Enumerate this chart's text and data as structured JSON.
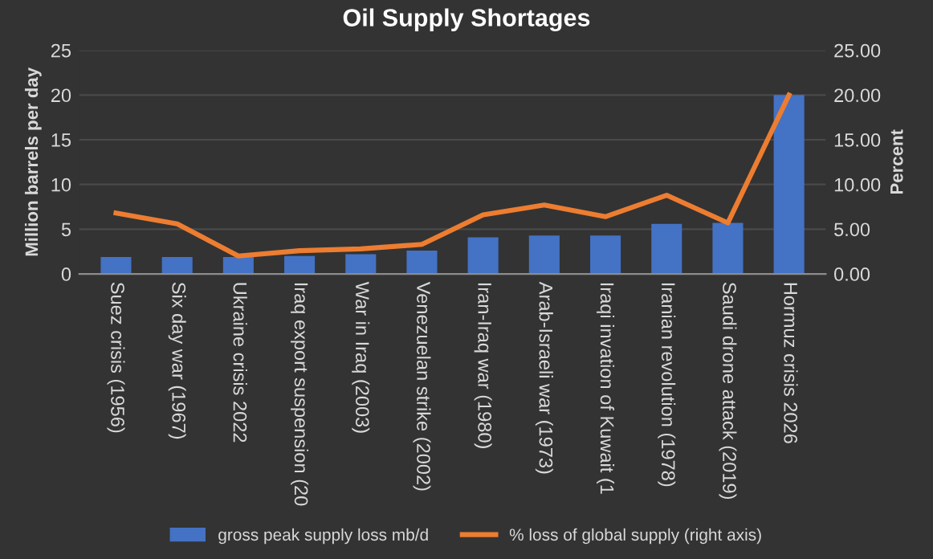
{
  "chart_data": {
    "type": "bar",
    "title": "Oil Supply Shortages",
    "ylabel": "Million barrels per day",
    "y2label": "Percent",
    "categories": [
      "Suez crisis (1956)",
      "Six day war (1967)",
      "Ukraine crisis 2022",
      "Iraq export suspension (20",
      "War in Iraq (2003)",
      "Venezuelan strike (2002)",
      "Iran-Iraq war (1980)",
      "Arab-Israeli war (1973)",
      "Iraqi invation of Kuwait (1",
      "Iranian revolution (1978)",
      "Saudi drone attack (2019)",
      "Hormuz crisis 2026"
    ],
    "series": [
      {
        "name": "gross peak supply loss mb/d",
        "color": "#4472c4",
        "values": [
          1.9,
          1.9,
          1.9,
          2.0,
          2.2,
          2.6,
          4.1,
          4.3,
          4.3,
          5.6,
          5.7,
          20
        ]
      },
      {
        "name": "% loss of global supply (right axis)",
        "color": "#ed7d31",
        "type": "line",
        "axis": "y2",
        "values": [
          6.8,
          5.6,
          2.0,
          2.6,
          2.8,
          3.3,
          6.6,
          7.7,
          6.4,
          8.8,
          5.7,
          20
        ]
      }
    ],
    "ylim": [
      0,
      25
    ],
    "yticks": [
      0,
      5,
      10,
      15,
      20,
      25
    ],
    "y2lim": [
      0,
      25
    ],
    "y2ticks": [
      {
        "value": 0,
        "label": "0.00"
      },
      {
        "value": 5,
        "label": "5.00"
      },
      {
        "value": 10,
        "label": "10.00"
      },
      {
        "value": 15,
        "label": "15.00"
      },
      {
        "value": 20,
        "label": "20.00"
      },
      {
        "value": 25,
        "label": "25.00"
      }
    ],
    "grid": "y",
    "legend": "bottom",
    "marker": "none",
    "line_style": "solid"
  }
}
